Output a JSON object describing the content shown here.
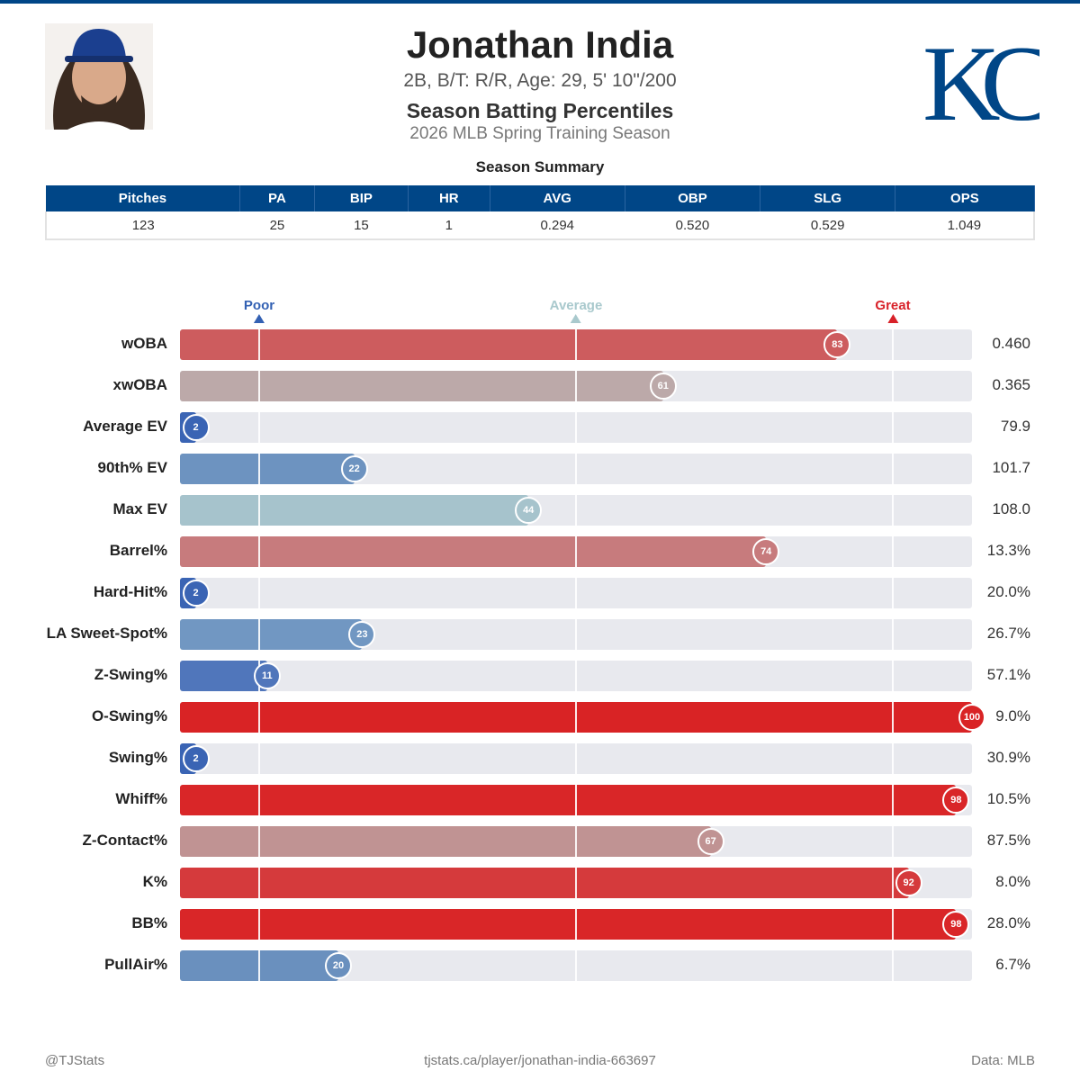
{
  "header": {
    "name": "Jonathan India",
    "bio": "2B, B/T: R/R, Age: 29, 5' 10\"/200",
    "title": "Season Batting Percentiles",
    "season": "2026 MLB Spring Training Season",
    "logo_text": "KC"
  },
  "summary": {
    "title": "Season Summary",
    "columns": [
      "Pitches",
      "PA",
      "BIP",
      "HR",
      "AVG",
      "OBP",
      "SLG",
      "OPS"
    ],
    "values": [
      "123",
      "25",
      "15",
      "1",
      "0.294",
      "0.520",
      "0.529",
      "1.049"
    ]
  },
  "chart_data": {
    "type": "bar",
    "title": "Season Batting Percentiles",
    "xlim": [
      0,
      100
    ],
    "markers": [
      {
        "label": "Poor",
        "value": 10,
        "color": "#3361b3"
      },
      {
        "label": "Average",
        "value": 50,
        "color": "#a9c9cd"
      },
      {
        "label": "Great",
        "value": 90,
        "color": "#d82129"
      }
    ],
    "rows": [
      {
        "label": "wOBA",
        "percentile": 83,
        "value": "0.460",
        "color": "#cd5c5e"
      },
      {
        "label": "xwOBA",
        "percentile": 61,
        "value": "0.365",
        "color": "#bca9a9"
      },
      {
        "label": "Average EV",
        "percentile": 2,
        "value": "79.9",
        "color": "#3a64b4"
      },
      {
        "label": "90th% EV",
        "percentile": 22,
        "value": "101.7",
        "color": "#6d93c0"
      },
      {
        "label": "Max EV",
        "percentile": 44,
        "value": "108.0",
        "color": "#a6c3cc"
      },
      {
        "label": "Barrel%",
        "percentile": 74,
        "value": "13.3%",
        "color": "#c77b7d"
      },
      {
        "label": "Hard-Hit%",
        "percentile": 2,
        "value": "20.0%",
        "color": "#3a64b4"
      },
      {
        "label": "LA Sweet-Spot%",
        "percentile": 23,
        "value": "26.7%",
        "color": "#7197c2"
      },
      {
        "label": "Z-Swing%",
        "percentile": 11,
        "value": "57.1%",
        "color": "#5076bb"
      },
      {
        "label": "O-Swing%",
        "percentile": 100,
        "value": "9.0%",
        "color": "#d92325"
      },
      {
        "label": "Swing%",
        "percentile": 2,
        "value": "30.9%",
        "color": "#3a64b4"
      },
      {
        "label": "Whiff%",
        "percentile": 98,
        "value": "10.5%",
        "color": "#d92628"
      },
      {
        "label": "Z-Contact%",
        "percentile": 67,
        "value": "87.5%",
        "color": "#c09393"
      },
      {
        "label": "K%",
        "percentile": 92,
        "value": "8.0%",
        "color": "#d53a3c"
      },
      {
        "label": "BB%",
        "percentile": 98,
        "value": "28.0%",
        "color": "#d92628"
      },
      {
        "label": "PullAir%",
        "percentile": 20,
        "value": "6.7%",
        "color": "#6a90be"
      }
    ]
  },
  "footer": {
    "left": "@TJStats",
    "center": "tjstats.ca/player/jonathan-india-663697",
    "right": "Data: MLB"
  }
}
